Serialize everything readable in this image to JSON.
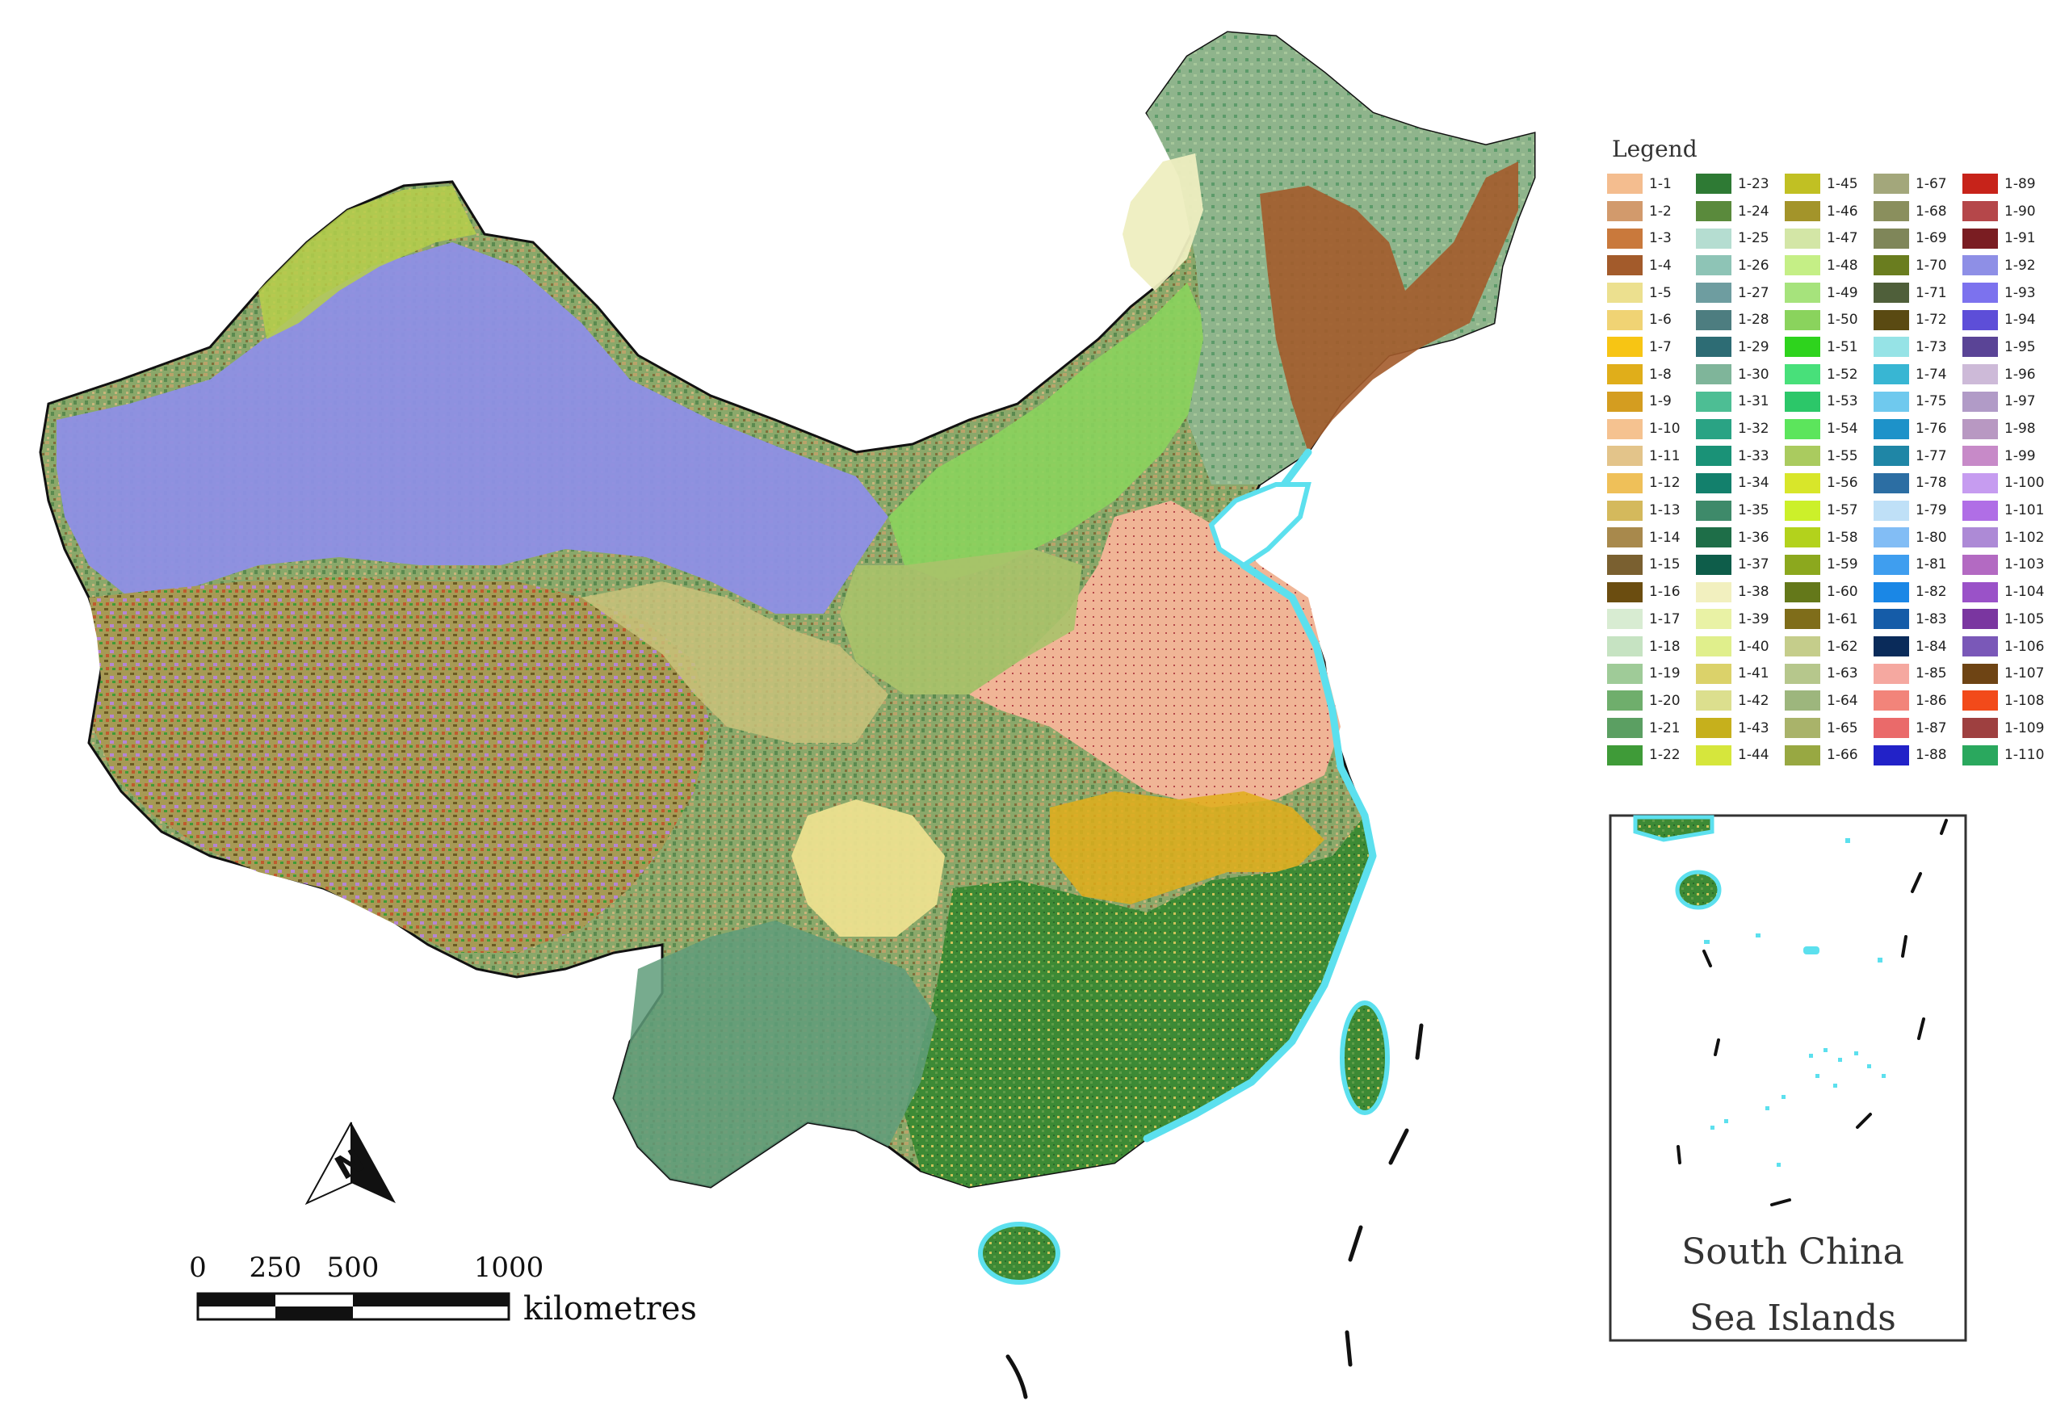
{
  "legend": {
    "title": "Legend",
    "items": [
      {
        "label": "1-1",
        "color": "#f4bd8f"
      },
      {
        "label": "1-2",
        "color": "#d29a6c"
      },
      {
        "label": "1-3",
        "color": "#c9793c"
      },
      {
        "label": "1-4",
        "color": "#a35b2b"
      },
      {
        "label": "1-5",
        "color": "#ece08f"
      },
      {
        "label": "1-6",
        "color": "#f0d374"
      },
      {
        "label": "1-7",
        "color": "#f7c514"
      },
      {
        "label": "1-8",
        "color": "#e0ae1a"
      },
      {
        "label": "1-9",
        "color": "#d49d20"
      },
      {
        "label": "1-10",
        "color": "#f5c290"
      },
      {
        "label": "1-11",
        "color": "#e3c48a"
      },
      {
        "label": "1-12",
        "color": "#efc059"
      },
      {
        "label": "1-13",
        "color": "#d4b95c"
      },
      {
        "label": "1-14",
        "color": "#a8894c"
      },
      {
        "label": "1-15",
        "color": "#7a6030"
      },
      {
        "label": "1-16",
        "color": "#6b4d10"
      },
      {
        "label": "1-17",
        "color": "#d8ecd2"
      },
      {
        "label": "1-18",
        "color": "#c6e3c2"
      },
      {
        "label": "1-19",
        "color": "#9fcb98"
      },
      {
        "label": "1-20",
        "color": "#6fae6c"
      },
      {
        "label": "1-21",
        "color": "#5b9f62"
      },
      {
        "label": "1-22",
        "color": "#3f9b38"
      },
      {
        "label": "1-23",
        "color": "#2e7a34"
      },
      {
        "label": "1-24",
        "color": "#5a8a3c"
      },
      {
        "label": "1-25",
        "color": "#b5ddd1"
      },
      {
        "label": "1-26",
        "color": "#8ec4b6"
      },
      {
        "label": "1-27",
        "color": "#6e9da0"
      },
      {
        "label": "1-28",
        "color": "#4d7d80"
      },
      {
        "label": "1-29",
        "color": "#2d6c74"
      },
      {
        "label": "1-30",
        "color": "#7fb59a"
      },
      {
        "label": "1-31",
        "color": "#4dbe94"
      },
      {
        "label": "1-32",
        "color": "#2aa384"
      },
      {
        "label": "1-33",
        "color": "#1a9277"
      },
      {
        "label": "1-34",
        "color": "#13806c"
      },
      {
        "label": "1-35",
        "color": "#3e8a6a"
      },
      {
        "label": "1-36",
        "color": "#1e6e48"
      },
      {
        "label": "1-37",
        "color": "#0e5d4a"
      },
      {
        "label": "1-38",
        "color": "#f2f0bf"
      },
      {
        "label": "1-39",
        "color": "#e9f2a5"
      },
      {
        "label": "1-40",
        "color": "#e0ef8c"
      },
      {
        "label": "1-41",
        "color": "#dbd26a"
      },
      {
        "label": "1-42",
        "color": "#dcdf8e"
      },
      {
        "label": "1-43",
        "color": "#c6b01c"
      },
      {
        "label": "1-44",
        "color": "#d6e63c"
      },
      {
        "label": "1-45",
        "color": "#c1c023"
      },
      {
        "label": "1-46",
        "color": "#a3942a"
      },
      {
        "label": "1-47",
        "color": "#d3e6a6"
      },
      {
        "label": "1-48",
        "color": "#c5ef86"
      },
      {
        "label": "1-49",
        "color": "#a6e37c"
      },
      {
        "label": "1-50",
        "color": "#8ad35d"
      },
      {
        "label": "1-51",
        "color": "#2ed31d"
      },
      {
        "label": "1-52",
        "color": "#48e07a"
      },
      {
        "label": "1-53",
        "color": "#2cc769"
      },
      {
        "label": "1-54",
        "color": "#5ce55c"
      },
      {
        "label": "1-55",
        "color": "#aacb5f"
      },
      {
        "label": "1-56",
        "color": "#d8e62a"
      },
      {
        "label": "1-57",
        "color": "#ccf02a"
      },
      {
        "label": "1-58",
        "color": "#b3d21c"
      },
      {
        "label": "1-59",
        "color": "#8ca81e"
      },
      {
        "label": "1-60",
        "color": "#64781a"
      },
      {
        "label": "1-61",
        "color": "#7f6d1a"
      },
      {
        "label": "1-62",
        "color": "#c5cd8b"
      },
      {
        "label": "1-63",
        "color": "#b6c78c"
      },
      {
        "label": "1-64",
        "color": "#9db67d"
      },
      {
        "label": "1-65",
        "color": "#a9b36a"
      },
      {
        "label": "1-66",
        "color": "#98a842"
      },
      {
        "label": "1-67",
        "color": "#a3a77b"
      },
      {
        "label": "1-68",
        "color": "#8a8f5d"
      },
      {
        "label": "1-69",
        "color": "#7f8659"
      },
      {
        "label": "1-70",
        "color": "#6a7d1f"
      },
      {
        "label": "1-71",
        "color": "#4f5f3a"
      },
      {
        "label": "1-72",
        "color": "#5a4a12"
      },
      {
        "label": "1-73",
        "color": "#96e3e6"
      },
      {
        "label": "1-74",
        "color": "#38b6d3"
      },
      {
        "label": "1-75",
        "color": "#6fc9ee"
      },
      {
        "label": "1-76",
        "color": "#1d92c9"
      },
      {
        "label": "1-77",
        "color": "#1f86a6"
      },
      {
        "label": "1-78",
        "color": "#2c6ea3"
      },
      {
        "label": "1-79",
        "color": "#bfe0f7"
      },
      {
        "label": "1-80",
        "color": "#82bdf5"
      },
      {
        "label": "1-81",
        "color": "#3f9eef"
      },
      {
        "label": "1-82",
        "color": "#1a87e6"
      },
      {
        "label": "1-83",
        "color": "#155ca8"
      },
      {
        "label": "1-84",
        "color": "#0a2b5a"
      },
      {
        "label": "1-85",
        "color": "#f5a8a0"
      },
      {
        "label": "1-86",
        "color": "#f2847a"
      },
      {
        "label": "1-87",
        "color": "#ea6a6a"
      },
      {
        "label": "1-88",
        "color": "#2222c8"
      },
      {
        "label": "1-89",
        "color": "#c7231a"
      },
      {
        "label": "1-90",
        "color": "#b5474a"
      },
      {
        "label": "1-91",
        "color": "#7a1d22"
      },
      {
        "label": "1-92",
        "color": "#8e8fe6"
      },
      {
        "label": "1-93",
        "color": "#7c72ee"
      },
      {
        "label": "1-94",
        "color": "#5d4ed8"
      },
      {
        "label": "1-95",
        "color": "#5a4496"
      },
      {
        "label": "1-96",
        "color": "#cdbad8"
      },
      {
        "label": "1-97",
        "color": "#b19bc7"
      },
      {
        "label": "1-98",
        "color": "#b898c2"
      },
      {
        "label": "1-99",
        "color": "#c78ac8"
      },
      {
        "label": "1-100",
        "color": "#c69cf0"
      },
      {
        "label": "1-101",
        "color": "#b06ee6"
      },
      {
        "label": "1-102",
        "color": "#ad8ad6"
      },
      {
        "label": "1-103",
        "color": "#b36ac2"
      },
      {
        "label": "1-104",
        "color": "#9a52c8"
      },
      {
        "label": "1-105",
        "color": "#7a36a0"
      },
      {
        "label": "1-106",
        "color": "#7a58b8"
      },
      {
        "label": "1-107",
        "color": "#6e4414"
      },
      {
        "label": "1-108",
        "color": "#f24a1a"
      },
      {
        "label": "1-109",
        "color": "#9e4040"
      },
      {
        "label": "1-110",
        "color": "#2aa85e"
      }
    ]
  },
  "scale_bar": {
    "tick_labels": [
      "0",
      "250",
      "500",
      "1000"
    ],
    "tick_values": [
      0,
      250,
      500,
      1000
    ],
    "units": "kilometres"
  },
  "north_arrow": {
    "label": "N"
  },
  "inset": {
    "caption_line1": "South China",
    "caption_line2": "Sea Islands"
  },
  "colors": {
    "coastline": "#5ce0ee",
    "border": "#111111",
    "desert": "#8e8fe6",
    "northeast_forest": "#8fb48c",
    "northeast_cropland": "#a35b2b",
    "north_plain": "#f2b99a",
    "south_forest": "#3d8a35",
    "tibet": "#9a8f4a",
    "sea": "#ffffff"
  }
}
